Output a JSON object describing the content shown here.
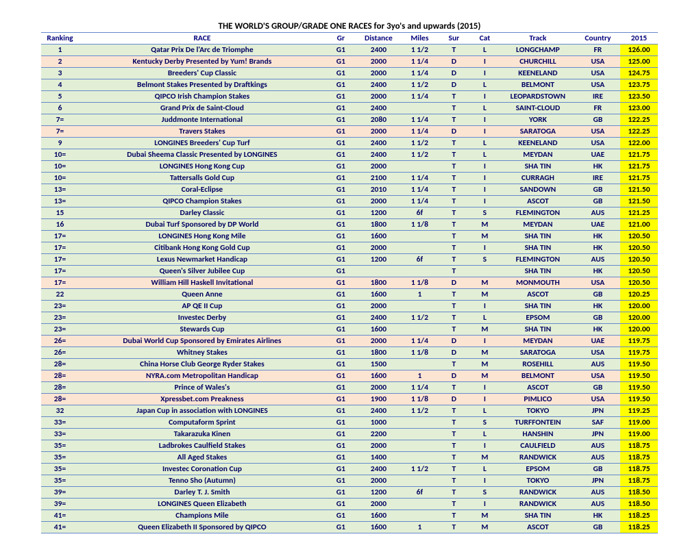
{
  "title": "THE WORLD'S GROUP/GRADE ONE RACES  for 3yo's and upwards (2015)",
  "headers": [
    "Ranking",
    "RACE",
    "Gr",
    "Distance",
    "Miles",
    "Sur",
    "Cat",
    "Track",
    "Country",
    "2015"
  ],
  "colors": {
    "text": "#000060",
    "border": "#6688cc",
    "green_bg": "#e2efd6",
    "peach_bg": "#fce4d2",
    "rating_bg": "#ffff00"
  },
  "rows": [
    {
      "rank": "1",
      "race": "Qatar Prix De l'Arc de Triomphe",
      "gr": "G1",
      "dist": "2400",
      "miles": "1 1/2",
      "sur": "T",
      "cat": "L",
      "track": "LONGCHAMP",
      "country": "FR",
      "rating": "126.00",
      "bg": "green"
    },
    {
      "rank": "2",
      "race": "Kentucky Derby Presented by Yum! Brands",
      "gr": "G1",
      "dist": "2000",
      "miles": "1 1/4",
      "sur": "D",
      "cat": "I",
      "track": "CHURCHILL",
      "country": "USA",
      "rating": "125.00",
      "bg": "peach"
    },
    {
      "rank": "3",
      "race": "Breeders' Cup Classic",
      "gr": "G1",
      "dist": "2000",
      "miles": "1 1/4",
      "sur": "D",
      "cat": "I",
      "track": "KEENELAND",
      "country": "USA",
      "rating": "124.75",
      "bg": "green"
    },
    {
      "rank": "4",
      "race": "Belmont Stakes Presented by Draftkings",
      "gr": "G1",
      "dist": "2400",
      "miles": "1 1/2",
      "sur": "D",
      "cat": "L",
      "track": "BELMONT",
      "country": "USA",
      "rating": "123.75",
      "bg": "green"
    },
    {
      "rank": "5",
      "race": "QIPCO Irish Champion Stakes",
      "gr": "G1",
      "dist": "2000",
      "miles": "1 1/4",
      "sur": "T",
      "cat": "I",
      "track": "LEOPARDSTOWN",
      "country": "IRE",
      "rating": "123.50",
      "bg": "green"
    },
    {
      "rank": "6",
      "race": "Grand Prix de Saint-Cloud",
      "gr": "G1",
      "dist": "2400",
      "miles": "",
      "sur": "T",
      "cat": "L",
      "track": "SAINT-CLOUD",
      "country": "FR",
      "rating": "123.00",
      "bg": "green"
    },
    {
      "rank": "7=",
      "race": "Juddmonte International",
      "gr": "G1",
      "dist": "2080",
      "miles": "1 1/4",
      "sur": "T",
      "cat": "I",
      "track": "YORK",
      "country": "GB",
      "rating": "122.25",
      "bg": "green"
    },
    {
      "rank": "7=",
      "race": "Travers Stakes",
      "gr": "G1",
      "dist": "2000",
      "miles": "1 1/4",
      "sur": "D",
      "cat": "I",
      "track": "SARATOGA",
      "country": "USA",
      "rating": "122.25",
      "bg": "peach"
    },
    {
      "rank": "9",
      "race": "LONGINES Breeders' Cup Turf",
      "gr": "G1",
      "dist": "2400",
      "miles": "1 1/2",
      "sur": "T",
      "cat": "L",
      "track": "KEENELAND",
      "country": "USA",
      "rating": "122.00",
      "bg": "green"
    },
    {
      "rank": "10=",
      "race": "Dubai Sheema Classic Presented by LONGINES",
      "gr": "G1",
      "dist": "2400",
      "miles": "1 1/2",
      "sur": "T",
      "cat": "L",
      "track": "MEYDAN",
      "country": "UAE",
      "rating": "121.75",
      "bg": "green"
    },
    {
      "rank": "10=",
      "race": "LONGINES Hong Kong Cup",
      "gr": "G1",
      "dist": "2000",
      "miles": "",
      "sur": "T",
      "cat": "I",
      "track": "SHA TIN",
      "country": "HK",
      "rating": "121.75",
      "bg": "green"
    },
    {
      "rank": "10=",
      "race": "Tattersalls Gold Cup",
      "gr": "G1",
      "dist": "2100",
      "miles": "1 1/4",
      "sur": "T",
      "cat": "I",
      "track": "CURRAGH",
      "country": "IRE",
      "rating": "121.75",
      "bg": "green"
    },
    {
      "rank": "13=",
      "race": "Coral-Eclipse",
      "gr": "G1",
      "dist": "2010",
      "miles": "1 1/4",
      "sur": "T",
      "cat": "I",
      "track": "SANDOWN",
      "country": "GB",
      "rating": "121.50",
      "bg": "green"
    },
    {
      "rank": "13=",
      "race": "QIPCO Champion Stakes",
      "gr": "G1",
      "dist": "2000",
      "miles": "1 1/4",
      "sur": "T",
      "cat": "I",
      "track": "ASCOT",
      "country": "GB",
      "rating": "121.50",
      "bg": "green"
    },
    {
      "rank": "15",
      "race": "Darley Classic",
      "gr": "G1",
      "dist": "1200",
      "miles": "6f",
      "sur": "T",
      "cat": "S",
      "track": "FLEMINGTON",
      "country": "AUS",
      "rating": "121.25",
      "bg": "green"
    },
    {
      "rank": "16",
      "race": "Dubai Turf Sponsored by DP World",
      "gr": "G1",
      "dist": "1800",
      "miles": "1 1/8",
      "sur": "T",
      "cat": "M",
      "track": "MEYDAN",
      "country": "UAE",
      "rating": "121.00",
      "bg": "green"
    },
    {
      "rank": "17=",
      "race": "LONGINES Hong Kong Mile",
      "gr": "G1",
      "dist": "1600",
      "miles": "",
      "sur": "T",
      "cat": "M",
      "track": "SHA TIN",
      "country": "HK",
      "rating": "120.50",
      "bg": "green"
    },
    {
      "rank": "17=",
      "race": "Citibank Hong Kong Gold Cup",
      "gr": "G1",
      "dist": "2000",
      "miles": "",
      "sur": "T",
      "cat": "I",
      "track": "SHA TIN",
      "country": "HK",
      "rating": "120.50",
      "bg": "green"
    },
    {
      "rank": "17=",
      "race": "Lexus Newmarket Handicap",
      "gr": "G1",
      "dist": "1200",
      "miles": "6f",
      "sur": "T",
      "cat": "S",
      "track": "FLEMINGTON",
      "country": "AUS",
      "rating": "120.50",
      "bg": "green"
    },
    {
      "rank": "17=",
      "race": "Queen's Silver Jubilee Cup",
      "gr": "G1",
      "dist": "",
      "miles": "",
      "sur": "T",
      "cat": "",
      "track": "SHA TIN",
      "country": "HK",
      "rating": "120.50",
      "bg": "green"
    },
    {
      "rank": "17=",
      "race": "William Hill Haskell Invitational",
      "gr": "G1",
      "dist": "1800",
      "miles": "1 1/8",
      "sur": "D",
      "cat": "M",
      "track": "MONMOUTH",
      "country": "USA",
      "rating": "120.50",
      "bg": "peach"
    },
    {
      "rank": "22",
      "race": "Queen Anne",
      "gr": "G1",
      "dist": "1600",
      "miles": "1",
      "sur": "T",
      "cat": "M",
      "track": "ASCOT",
      "country": "GB",
      "rating": "120.25",
      "bg": "green"
    },
    {
      "rank": "23=",
      "race": "AP QE II Cup",
      "gr": "G1",
      "dist": "2000",
      "miles": "",
      "sur": "T",
      "cat": "I",
      "track": "SHA TIN",
      "country": "HK",
      "rating": "120.00",
      "bg": "green"
    },
    {
      "rank": "23=",
      "race": "Investec Derby",
      "gr": "G1",
      "dist": "2400",
      "miles": "1 1/2",
      "sur": "T",
      "cat": "L",
      "track": "EPSOM",
      "country": "GB",
      "rating": "120.00",
      "bg": "green"
    },
    {
      "rank": "23=",
      "race": "Stewards Cup",
      "gr": "G1",
      "dist": "1600",
      "miles": "",
      "sur": "T",
      "cat": "M",
      "track": "SHA TIN",
      "country": "HK",
      "rating": "120.00",
      "bg": "green"
    },
    {
      "rank": "26=",
      "race": "Dubai World Cup Sponsored by Emirates Airlines",
      "gr": "G1",
      "dist": "2000",
      "miles": "1 1/4",
      "sur": "D",
      "cat": "I",
      "track": "MEYDAN",
      "country": "UAE",
      "rating": "119.75",
      "bg": "peach"
    },
    {
      "rank": "26=",
      "race": "Whitney Stakes",
      "gr": "G1",
      "dist": "1800",
      "miles": "1 1/8",
      "sur": "D",
      "cat": "M",
      "track": "SARATOGA",
      "country": "USA",
      "rating": "119.75",
      "bg": "green"
    },
    {
      "rank": "28=",
      "race": "China Horse Club George Ryder Stakes",
      "gr": "G1",
      "dist": "1500",
      "miles": "",
      "sur": "T",
      "cat": "M",
      "track": "ROSEHILL",
      "country": "AUS",
      "rating": "119.50",
      "bg": "green"
    },
    {
      "rank": "28=",
      "race": "NYRA.com Metropolitan Handicap",
      "gr": "G1",
      "dist": "1600",
      "miles": "1",
      "sur": "D",
      "cat": "M",
      "track": "BELMONT",
      "country": "USA",
      "rating": "119.50",
      "bg": "peach"
    },
    {
      "rank": "28=",
      "race": "Prince of Wales's",
      "gr": "G1",
      "dist": "2000",
      "miles": "1 1/4",
      "sur": "T",
      "cat": "I",
      "track": "ASCOT",
      "country": "GB",
      "rating": "119.50",
      "bg": "green"
    },
    {
      "rank": "28=",
      "race": "Xpressbet.com Preakness",
      "gr": "G1",
      "dist": "1900",
      "miles": "1 1/8",
      "sur": "D",
      "cat": "I",
      "track": "PIMLICO",
      "country": "USA",
      "rating": "119.50",
      "bg": "peach"
    },
    {
      "rank": "32",
      "race": "Japan Cup in association with LONGINES",
      "gr": "G1",
      "dist": "2400",
      "miles": "1 1/2",
      "sur": "T",
      "cat": "L",
      "track": "TOKYO",
      "country": "JPN",
      "rating": "119.25",
      "bg": "green"
    },
    {
      "rank": "33=",
      "race": "Computaform Sprint",
      "gr": "G1",
      "dist": "1000",
      "miles": "",
      "sur": "T",
      "cat": "S",
      "track": "TURFFONTEIN",
      "country": "SAF",
      "rating": "119.00",
      "bg": "green"
    },
    {
      "rank": "33=",
      "race": "Takarazuka Kinen",
      "gr": "G1",
      "dist": "2200",
      "miles": "",
      "sur": "T",
      "cat": "L",
      "track": "HANSHIN",
      "country": "JPN",
      "rating": "119.00",
      "bg": "green"
    },
    {
      "rank": "35=",
      "race": "Ladbrokes Caulfield Stakes",
      "gr": "G1",
      "dist": "2000",
      "miles": "",
      "sur": "T",
      "cat": "I",
      "track": "CAULFIELD",
      "country": "AUS",
      "rating": "118.75",
      "bg": "green"
    },
    {
      "rank": "35=",
      "race": "All Aged Stakes",
      "gr": "G1",
      "dist": "1400",
      "miles": "",
      "sur": "T",
      "cat": "M",
      "track": "RANDWICK",
      "country": "AUS",
      "rating": "118.75",
      "bg": "green"
    },
    {
      "rank": "35=",
      "race": "Investec Coronation Cup",
      "gr": "G1",
      "dist": "2400",
      "miles": "1 1/2",
      "sur": "T",
      "cat": "L",
      "track": "EPSOM",
      "country": "GB",
      "rating": "118.75",
      "bg": "green"
    },
    {
      "rank": "35=",
      "race": "Tenno Sho (Autumn)",
      "gr": "G1",
      "dist": "2000",
      "miles": "",
      "sur": "T",
      "cat": "I",
      "track": "TOKYO",
      "country": "JPN",
      "rating": "118.75",
      "bg": "green"
    },
    {
      "rank": "39=",
      "race": "Darley T. J. Smith",
      "gr": "G1",
      "dist": "1200",
      "miles": "6f",
      "sur": "T",
      "cat": "S",
      "track": "RANDWICK",
      "country": "AUS",
      "rating": "118.50",
      "bg": "green"
    },
    {
      "rank": "39=",
      "race": "LONGINES Queen Elizabeth",
      "gr": "G1",
      "dist": "2000",
      "miles": "",
      "sur": "T",
      "cat": "I",
      "track": "RANDWICK",
      "country": "AUS",
      "rating": "118.50",
      "bg": "green"
    },
    {
      "rank": "41=",
      "race": "Champions Mile",
      "gr": "G1",
      "dist": "1600",
      "miles": "",
      "sur": "T",
      "cat": "M",
      "track": "SHA TIN",
      "country": "HK",
      "rating": "118.25",
      "bg": "green"
    },
    {
      "rank": "41=",
      "race": "Queen Elizabeth II Sponsored by QIPCO",
      "gr": "G1",
      "dist": "1600",
      "miles": "1",
      "sur": "T",
      "cat": "M",
      "track": "ASCOT",
      "country": "GB",
      "rating": "118.25",
      "bg": "green"
    }
  ]
}
